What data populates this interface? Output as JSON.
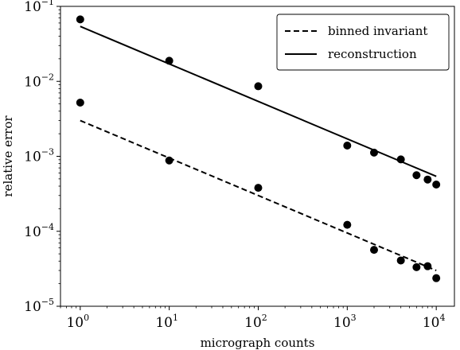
{
  "chart_data": {
    "type": "scatter",
    "x_scale": "log",
    "y_scale": "log",
    "xlabel": "micrograph counts",
    "ylabel": "relative error",
    "xlim": [
      0.6,
      16000
    ],
    "ylim": [
      1e-05,
      0.1
    ],
    "x_ticks": [
      {
        "value": 1,
        "base": "10",
        "exp": "0"
      },
      {
        "value": 10,
        "base": "10",
        "exp": "1"
      },
      {
        "value": 100,
        "base": "10",
        "exp": "2"
      },
      {
        "value": 1000,
        "base": "10",
        "exp": "3"
      },
      {
        "value": 10000,
        "base": "10",
        "exp": "4"
      }
    ],
    "y_ticks": [
      {
        "value": 1e-05,
        "base": "10",
        "exp": "−5"
      },
      {
        "value": 0.0001,
        "base": "10",
        "exp": "−4"
      },
      {
        "value": 0.001,
        "base": "10",
        "exp": "−3"
      },
      {
        "value": 0.01,
        "base": "10",
        "exp": "−2"
      },
      {
        "value": 0.1,
        "base": "10",
        "exp": "−1"
      }
    ],
    "grid": false,
    "legend_position": "top-right",
    "series": [
      {
        "name": "binned invariant",
        "kind": "points",
        "color": "#000000",
        "x": [
          1,
          10,
          100,
          1000,
          2000,
          4000,
          6000,
          8000,
          10000
        ],
        "y": [
          0.0052,
          0.00088,
          0.00038,
          0.000122,
          5.65e-05,
          4.08e-05,
          3.32e-05,
          3.42e-05,
          2.37e-05
        ]
      },
      {
        "name": "binned invariant",
        "kind": "fit",
        "line_style": "dashed",
        "color": "#000000",
        "x": [
          1,
          10000
        ],
        "y": [
          0.003,
          3e-05
        ]
      },
      {
        "name": "reconstruction",
        "kind": "points",
        "color": "#000000",
        "x": [
          1,
          10,
          100,
          1000,
          2000,
          4000,
          6000,
          8000,
          10000
        ],
        "y": [
          0.067,
          0.0188,
          0.0086,
          0.00139,
          0.00112,
          0.00091,
          0.00056,
          0.00049,
          0.00042
        ]
      },
      {
        "name": "reconstruction",
        "kind": "fit",
        "line_style": "solid",
        "color": "#000000",
        "x": [
          1,
          10000
        ],
        "y": [
          0.054,
          0.00054
        ]
      }
    ],
    "legend": [
      {
        "label": "binned invariant",
        "line_style": "dashed"
      },
      {
        "label": "reconstruction",
        "line_style": "solid"
      }
    ]
  }
}
